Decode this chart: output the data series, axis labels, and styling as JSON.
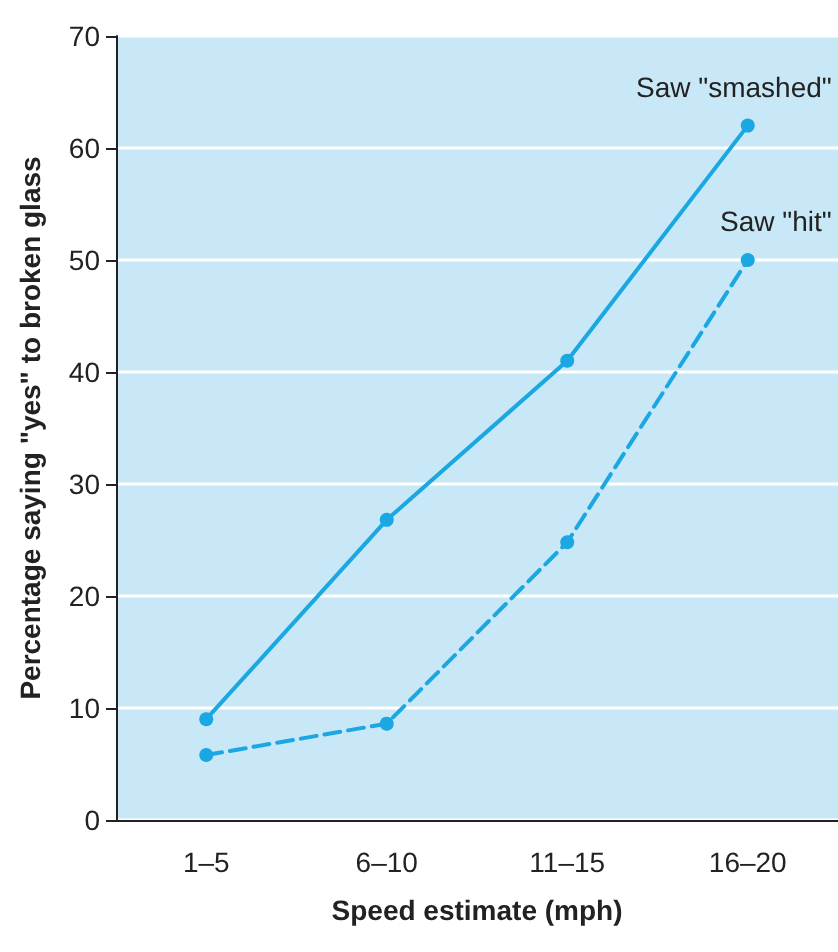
{
  "chart_data": {
    "type": "line",
    "xlabel": "Speed estimate (mph)",
    "ylabel": "Percentage saying \"yes\" to broken glass",
    "categories": [
      "1–5",
      "6–10",
      "11–15",
      "16–20"
    ],
    "series": [
      {
        "name": "Saw \"smashed\"",
        "color": "#1ba7e1",
        "line_style": "solid",
        "values": [
          9,
          26.8,
          41,
          62
        ]
      },
      {
        "name": "Saw \"hit\"",
        "color": "#1ba7e1",
        "line_style": "dashed",
        "values": [
          5.8,
          8.6,
          24.8,
          50
        ]
      }
    ],
    "ylim": [
      0,
      70
    ],
    "yticks": [
      0,
      10,
      20,
      30,
      40,
      50,
      60,
      70
    ],
    "grid": "y",
    "legend": false,
    "marker": "circle"
  }
}
